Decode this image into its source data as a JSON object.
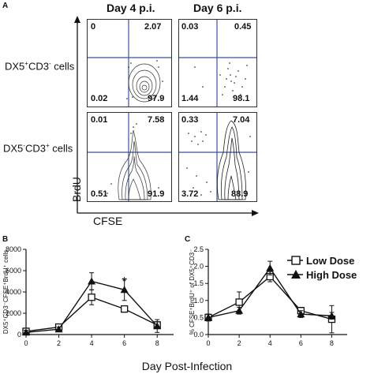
{
  "panel_a": {
    "letter": "A",
    "columns": [
      "Day 4 p.i.",
      "Day 6 p.i."
    ],
    "rows": [
      {
        "label_main": "DX5",
        "sup1": "+",
        "mid": "CD3",
        "sup2": "-",
        "tail": " cells"
      },
      {
        "label_main": "DX5",
        "sup1": "-",
        "mid": "CD3",
        "sup2": "+",
        "tail": " cells"
      }
    ],
    "x_axis": "CFSE",
    "y_axis": "BrdU",
    "quadrants": [
      {
        "ul": "0",
        "ur": "2.07",
        "ll": "0.02",
        "lr": "97.9"
      },
      {
        "ul": "0.03",
        "ur": "0.45",
        "ll": "1.44",
        "lr": "98.1"
      },
      {
        "ul": "0.01",
        "ur": "7.58",
        "ll": "0.51",
        "lr": "91.9"
      },
      {
        "ul": "0.33",
        "ur": "7.04",
        "ll": "3.72",
        "lr": "88.9"
      }
    ]
  },
  "panel_b": {
    "letter": "B"
  },
  "panel_c": {
    "letter": "C"
  },
  "shared_xlabel": "Day Post-Infection",
  "chart_data": [
    {
      "type": "line",
      "xlabel": "Day Post-Infection",
      "ylabel": "DX5⁺CD3⁻CFSE⁺BrdU⁺ cells",
      "x": [
        0,
        2,
        4,
        6,
        8
      ],
      "xticks": [
        "0",
        "2",
        "4",
        "6",
        "8"
      ],
      "ylim": [
        0,
        8000
      ],
      "yticks": [
        "0",
        "2000",
        "4000",
        "6000",
        "8000"
      ],
      "series": [
        {
          "name": "Low Dose",
          "marker": "square-open",
          "values": [
            300,
            700,
            3500,
            2400,
            900
          ],
          "errors": [
            300,
            300,
            700,
            300,
            300
          ]
        },
        {
          "name": "High Dose",
          "marker": "triangle-filled",
          "values": [
            200,
            500,
            5000,
            4200,
            800
          ],
          "errors": [
            200,
            200,
            800,
            1000,
            600
          ]
        }
      ],
      "annotations": [
        {
          "x": 6,
          "text": "*"
        }
      ]
    },
    {
      "type": "line",
      "xlabel": "Day Post-Infection",
      "ylabel": "% CFSE⁺BrdU⁺ of DX5⁺CD3⁻",
      "x": [
        0,
        2,
        4,
        6,
        8
      ],
      "xticks": [
        "0",
        "2",
        "4",
        "6",
        "8"
      ],
      "ylim": [
        0.0,
        2.5
      ],
      "yticks": [
        "0.0",
        "0.5",
        "1.0",
        "1.5",
        "2.0",
        "2.5"
      ],
      "legend": "top-right",
      "series": [
        {
          "name": "Low Dose",
          "marker": "square-open",
          "values": [
            0.5,
            0.95,
            1.7,
            0.7,
            0.45
          ],
          "errors": [
            0.1,
            0.3,
            0.15,
            0.1,
            0.4
          ]
        },
        {
          "name": "High Dose",
          "marker": "triangle-filled",
          "values": [
            0.5,
            0.7,
            1.95,
            0.6,
            0.55
          ],
          "errors": [
            0.1,
            0.1,
            0.2,
            0.1,
            0.1
          ]
        }
      ]
    }
  ]
}
